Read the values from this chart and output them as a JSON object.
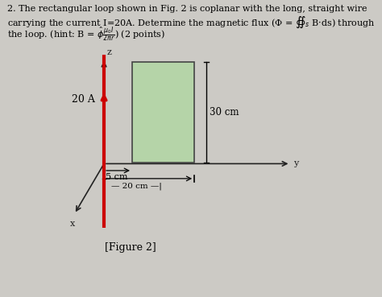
{
  "background_color": "#cccac5",
  "wire_color": "#cc0000",
  "rect_fill": "#b5d4a8",
  "rect_edge": "#444444",
  "axis_color": "#222222",
  "label_20A": "20 A",
  "label_30cm": "30 cm",
  "label_5cm": "5 cm",
  "label_20cm": "20 cm",
  "label_z": "z",
  "label_y": "y",
  "label_x": "x",
  "fig_caption": "[Figure 2]",
  "line1": "2. The rectangular loop shown in Fig. 2 is coplanar with the long, straight wire",
  "line2": "carrying the current I=20A. Determine the magnetic flux (Φ = ∯s B·ds) through",
  "line3": "the loop. (hint: B = Φ̂ μ0I/2πr) (2 points)"
}
